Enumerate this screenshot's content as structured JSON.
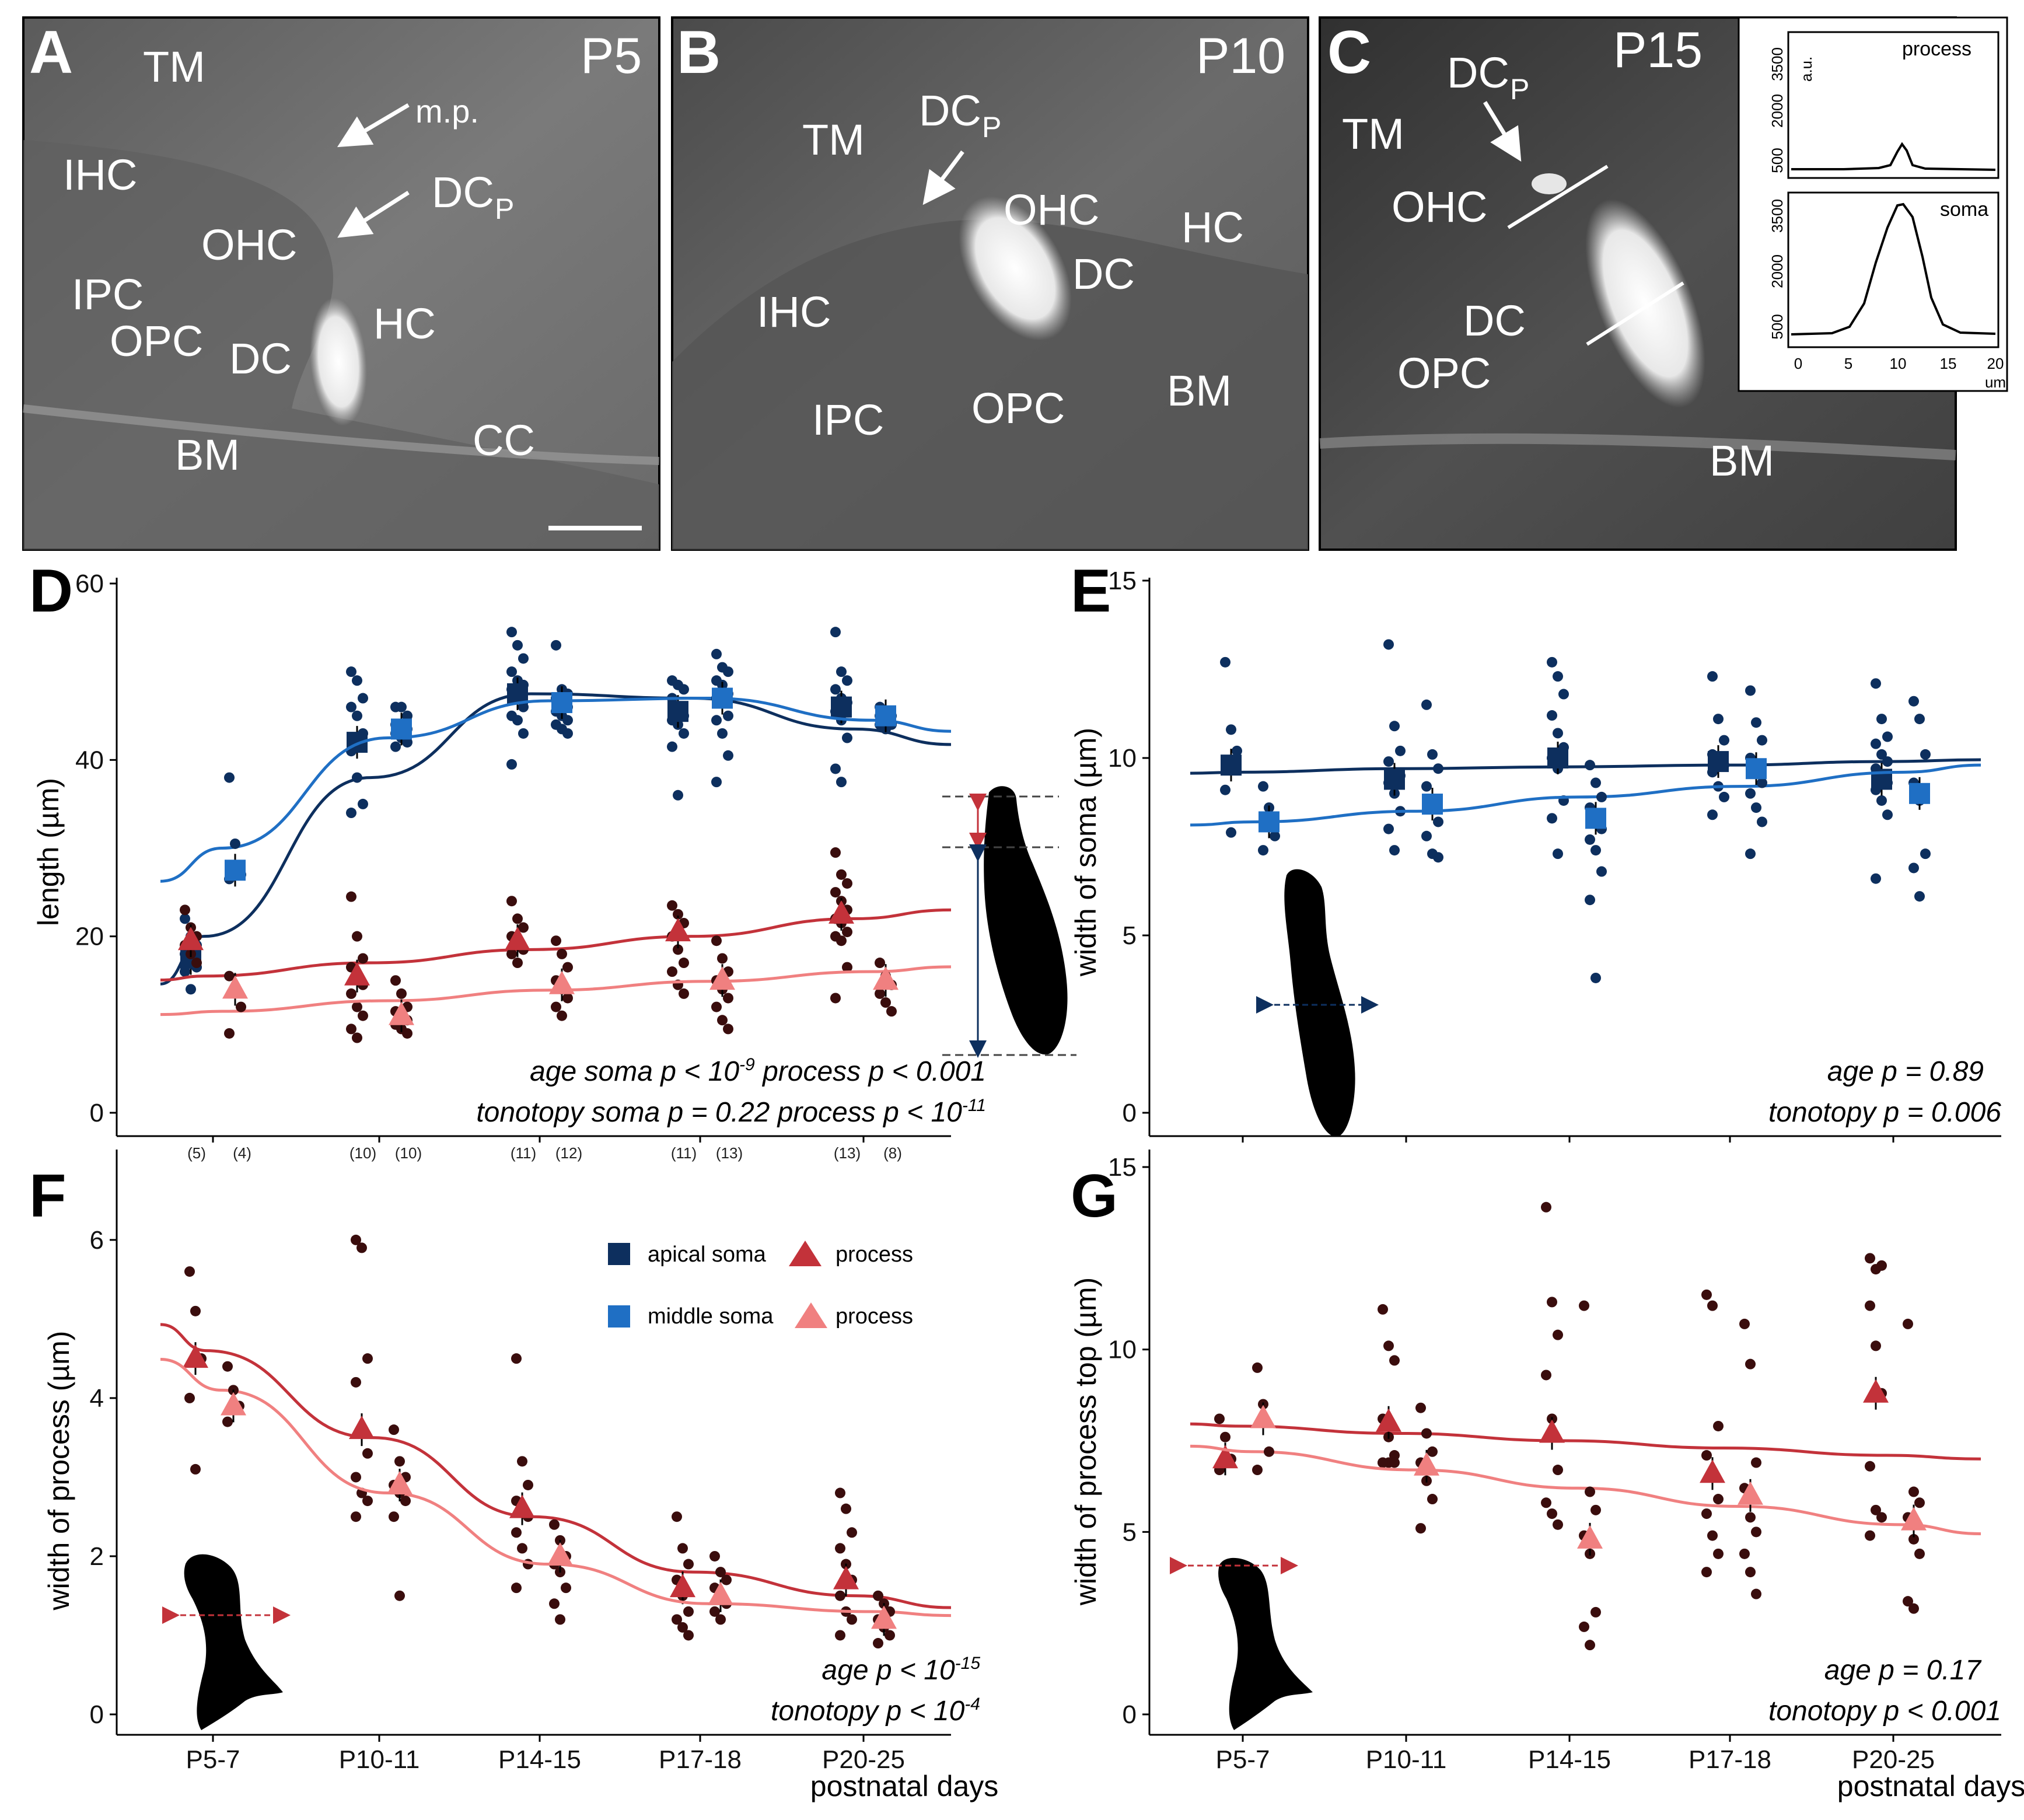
{
  "micrographs": [
    {
      "letter": "A",
      "stage": "P5",
      "labels": [
        "TM",
        "m.p.",
        "IHC",
        "DC",
        "P",
        "OHC",
        "IPC",
        "OPC",
        "DC",
        "HC",
        "BM",
        "CC"
      ]
    },
    {
      "letter": "B",
      "stage": "P10",
      "labels": [
        "TM",
        "DC",
        "P",
        "OHC",
        "HC",
        "DC",
        "IHC",
        "IPC",
        "OPC",
        "BM"
      ]
    },
    {
      "letter": "C",
      "stage": "P15",
      "labels": [
        "DC",
        "P",
        "TM",
        "OHC",
        "DC",
        "OPC",
        "BM"
      ]
    }
  ],
  "inset": {
    "top_label": "process",
    "bottom_label": "soma",
    "y_unit": "a.u.",
    "x_unit": "um",
    "top_yticks": [
      "3500",
      "2000",
      "500"
    ],
    "bottom_yticks": [
      "3500",
      "2000",
      "500"
    ],
    "xticks": [
      "0",
      "5",
      "10",
      "15",
      "20"
    ]
  },
  "legend": {
    "apical_soma": "apical soma",
    "middle_soma": "middle soma",
    "process_apical": "process",
    "process_middle": "process"
  },
  "colors": {
    "apical_soma": "#0d2f5e",
    "middle_soma": "#1f6fc4",
    "apical_process": "#c3323a",
    "middle_process": "#f08080",
    "points": "#3a0d0d"
  },
  "panels": {
    "D": {
      "letter": "D",
      "ylabel": "length (µm)",
      "yticks": [
        "0",
        "20",
        "40",
        "60"
      ],
      "counts": [
        "(5)",
        "(4)",
        "(10)",
        "(10)",
        "(11)",
        "(12)",
        "(11)",
        "(13)",
        "(13)",
        "(8)"
      ],
      "ann1_prefix": "age soma p < 10",
      "ann1_exp": "-9",
      "ann1_suffix": " process p < 0.001",
      "ann2_prefix": "tonotopy soma p = 0.22 process p < 10",
      "ann2_exp": "-11"
    },
    "E": {
      "letter": "E",
      "ylabel": "width of soma (µm)",
      "yticks": [
        "0",
        "5",
        "10",
        "15"
      ],
      "ann1": "age p = 0.89",
      "ann2": "tonotopy p = 0.006"
    },
    "F": {
      "letter": "F",
      "ylabel": "width of process (µm)",
      "yticks": [
        "0",
        "2",
        "4",
        "6"
      ],
      "xticks": [
        "P5-7",
        "P10-11",
        "P14-15",
        "P17-18",
        "P20-25"
      ],
      "xlabel": "postnatal days",
      "ann1_prefix": "age p < 10",
      "ann1_exp": "-15",
      "ann2_prefix": "tonotopy p < 10",
      "ann2_exp": "-4"
    },
    "G": {
      "letter": "G",
      "ylabel": "width of process top (µm)",
      "yticks": [
        "0",
        "5",
        "10",
        "15"
      ],
      "xticks": [
        "P5-7",
        "P10-11",
        "P14-15",
        "P17-18",
        "P20-25"
      ],
      "xlabel": "postnatal days",
      "ann1": "age p = 0.17",
      "ann2": "tonotopy p < 0.001"
    }
  },
  "chart_data": [
    {
      "panel": "D",
      "type": "scatter",
      "ylabel": "length (µm)",
      "ylim": [
        0,
        60
      ],
      "categories": [
        "P5-7",
        "P10-11",
        "P14-15",
        "P17-18",
        "P20-25"
      ],
      "series": [
        {
          "name": "apical soma",
          "means": [
            17.5,
            42,
            47.5,
            45.5,
            46
          ],
          "points": [
            [
              22,
              20,
              19,
              18,
              17,
              16.5,
              16,
              14
            ],
            [
              50,
              49,
              47,
              46,
              45,
              43,
              41,
              38,
              35,
              34
            ],
            [
              54.5,
              53,
              51.5,
              50,
              49,
              48.5,
              48,
              47,
              46,
              45,
              44.5,
              43,
              39.5
            ],
            [
              49,
              48.5,
              48,
              47,
              46,
              45,
              44.5,
              44,
              43,
              41.5,
              36
            ],
            [
              54.5,
              50,
              49,
              48,
              47,
              46.5,
              45.5,
              44.5,
              42.5,
              39,
              37.5
            ]
          ],
          "fit": [
            20,
            38,
            47.5,
            47,
            43.5
          ]
        },
        {
          "name": "middle soma",
          "means": [
            27.5,
            43.5,
            46.5,
            47,
            45
          ],
          "points": [
            [
              38,
              30.5,
              27,
              26.5
            ],
            [
              46,
              46,
              45,
              44,
              44,
              43.5,
              43,
              42.5,
              42,
              41.5
            ],
            [
              53,
              48,
              47.5,
              47,
              46.5,
              46,
              45.5,
              45,
              44.5,
              44,
              43.5,
              43
            ],
            [
              52,
              50.5,
              50,
              49,
              48.5,
              47.5,
              47,
              46.5,
              45,
              44.5,
              43,
              40.5,
              37.5
            ],
            [
              46,
              45.5,
              45,
              45,
              44.5,
              44,
              44,
              43.5
            ]
          ],
          "fit": [
            30,
            42.5,
            46.7,
            47,
            44.5
          ]
        },
        {
          "name": "process (apical)",
          "means": [
            19.5,
            15.5,
            19.5,
            20.5,
            22.5
          ],
          "points": [
            [
              23,
              21,
              20,
              19,
              18,
              17
            ],
            [
              24.5,
              20,
              17.5,
              16.5,
              15.5,
              14.5,
              13.5,
              12,
              11,
              9.5,
              8.5
            ],
            [
              24,
              22,
              21,
              20,
              19.5,
              18.5,
              18,
              17
            ],
            [
              23.5,
              22.5,
              21.5,
              20,
              18.5,
              17,
              16,
              14.5,
              13.5
            ],
            [
              29.5,
              27,
              26,
              25,
              24,
              23,
              22,
              21.5,
              20.5,
              20,
              19.5,
              16.5,
              13
            ]
          ],
          "fit": [
            15.5,
            17,
            18.5,
            20,
            22
          ]
        },
        {
          "name": "process (middle)",
          "means": [
            14,
            11,
            14.5,
            15,
            15
          ],
          "points": [
            [
              15.5,
              14,
              12,
              9
            ],
            [
              15,
              13.5,
              12,
              11.5,
              11,
              10.5,
              10,
              9.5,
              9
            ],
            [
              19.5,
              18,
              16.5,
              15,
              14,
              13,
              12,
              11
            ],
            [
              19.5,
              17.5,
              16,
              15,
              14,
              13,
              12,
              10.5,
              9.5
            ],
            [
              17,
              15.5,
              14.5,
              13.5,
              12.5,
              11.5
            ]
          ],
          "fit": [
            11.5,
            12.7,
            13.9,
            14.9,
            16
          ]
        }
      ]
    },
    {
      "panel": "E",
      "type": "scatter",
      "ylabel": "width of soma (µm)",
      "ylim": [
        0,
        15
      ],
      "categories": [
        "P5-7",
        "P10-11",
        "P14-15",
        "P17-18",
        "P20-25"
      ],
      "series": [
        {
          "name": "apical soma",
          "means": [
            9.8,
            9.4,
            10,
            9.9,
            9.4
          ],
          "points": [
            [
              12.7,
              10.8,
              10.2,
              9.1,
              7.9
            ],
            [
              13.2,
              10.9,
              10.2,
              9.9,
              9.6,
              9.5,
              9.3,
              9,
              8.5,
              8,
              7.4
            ],
            [
              12.7,
              12.3,
              11.8,
              11.2,
              10.7,
              10.3,
              10,
              9.7,
              8.8,
              8.3,
              7.3
            ],
            [
              12.3,
              11.1,
              10.5,
              10.1,
              10,
              9.8,
              9.6,
              9.2,
              8.9,
              8.4
            ],
            [
              12.1,
              11.1,
              10.6,
              10.4,
              10.1,
              9.9,
              9.7,
              9.5,
              9.3,
              9.1,
              8.8,
              8.4,
              6.6
            ]
          ],
          "fit": [
            9.6,
            9.7,
            9.75,
            9.8,
            9.9
          ]
        },
        {
          "name": "middle soma",
          "means": [
            8.2,
            8.7,
            8.3,
            9.7,
            9
          ],
          "points": [
            [
              9.2,
              8.6,
              7.8,
              7.4
            ],
            [
              11.5,
              10.1,
              9.7,
              9.2,
              8.7,
              8.2,
              7.8,
              7.3,
              7.2
            ],
            [
              9.8,
              9.3,
              8.9,
              8.6,
              8.3,
              8,
              7.7,
              7.4,
              6.8,
              6,
              3.8
            ],
            [
              11.9,
              11,
              10.5,
              10,
              9.7,
              9.3,
              9,
              8.6,
              8.2,
              7.3
            ],
            [
              11.6,
              11.1,
              10.1,
              9.3,
              8.8,
              7.3,
              6.9,
              6.1
            ]
          ],
          "fit": [
            8.2,
            8.5,
            8.9,
            9.2,
            9.6
          ]
        }
      ]
    },
    {
      "panel": "F",
      "type": "scatter",
      "ylabel": "width of process (µm)",
      "xlabel": "postnatal days",
      "ylim": [
        0,
        7
      ],
      "categories": [
        "P5-7",
        "P10-11",
        "P14-15",
        "P17-18",
        "P20-25"
      ],
      "series": [
        {
          "name": "process (apical)",
          "means": [
            4.5,
            3.6,
            2.6,
            1.6,
            1.7
          ],
          "points": [
            [
              5.6,
              5.1,
              4.5,
              4,
              3.1
            ],
            [
              6,
              5.9,
              4.5,
              4.2,
              3.6,
              3.3,
              3,
              2.8,
              2.7,
              2.5
            ],
            [
              4.5,
              3.2,
              2.9,
              2.7,
              2.6,
              2.5,
              2.3,
              2.1,
              1.9,
              1.6
            ],
            [
              2.5,
              2.1,
              1.9,
              1.7,
              1.5,
              1.3,
              1.2,
              1.1,
              1
            ],
            [
              2.8,
              2.6,
              2.3,
              2.1,
              1.9,
              1.7,
              1.5,
              1.3,
              1.2,
              1
            ]
          ],
          "fit": [
            4.6,
            3.5,
            2.5,
            1.8,
            1.5
          ]
        },
        {
          "name": "process (middle)",
          "means": [
            3.9,
            2.9,
            2,
            1.5,
            1.2
          ],
          "points": [
            [
              4.4,
              4.1,
              3.9,
              3.7
            ],
            [
              3.6,
              3.2,
              3,
              2.9,
              2.8,
              2.7,
              2.5,
              1.5
            ],
            [
              2.4,
              2.2,
              2,
              1.9,
              1.8,
              1.6,
              1.4,
              1.2
            ],
            [
              2,
              1.8,
              1.7,
              1.6,
              1.5,
              1.4,
              1.3,
              1.2
            ],
            [
              1.5,
              1.4,
              1.3,
              1.2,
              1.1,
              1,
              0.9
            ]
          ],
          "fit": [
            4.1,
            2.8,
            1.9,
            1.4,
            1.3
          ]
        }
      ]
    },
    {
      "panel": "G",
      "type": "scatter",
      "ylabel": "width of process top (µm)",
      "xlabel": "postnatal days",
      "ylim": [
        0,
        15
      ],
      "categories": [
        "P5-7",
        "P10-11",
        "P14-15",
        "P17-18",
        "P20-25"
      ],
      "series": [
        {
          "name": "process (apical)",
          "means": [
            7,
            8,
            7.7,
            6.6,
            8.8
          ],
          "points": [
            [
              8.1,
              7.6,
              7,
              6.7
            ],
            [
              11.1,
              10.1,
              9.7,
              8.1,
              7.6,
              7.1,
              6.9,
              6.9,
              6.9,
              6.9
            ],
            [
              13.9,
              11.3,
              10.4,
              9.3,
              8.1,
              6.7,
              5.8,
              5.5,
              5.2
            ],
            [
              11.5,
              11.2,
              7.9,
              7.1,
              6.6,
              5.9,
              5.5,
              4.9,
              4.4,
              3.9
            ],
            [
              12.5,
              12.2,
              12.3,
              11.2,
              10.1,
              8.8,
              6.8,
              5.6,
              5.4,
              4.9
            ]
          ],
          "fit": [
            7.9,
            7.7,
            7.5,
            7.3,
            7.1
          ]
        },
        {
          "name": "process (middle)",
          "means": [
            8.1,
            6.8,
            4.8,
            6,
            5.3
          ],
          "points": [
            [
              9.5,
              8.5,
              7.2,
              6.7
            ],
            [
              8.4,
              7.7,
              7.2,
              6.9,
              6.4,
              5.9,
              5.1
            ],
            [
              11.2,
              6.1,
              5.6,
              4.9,
              4.4,
              2.8,
              2.4,
              1.9
            ],
            [
              10.7,
              9.6,
              6.9,
              6.2,
              5.4,
              5,
              4.4,
              3.9,
              3.3
            ],
            [
              10.7,
              6.1,
              5.8,
              5.4,
              4.8,
              4.4,
              3.1,
              2.9
            ]
          ],
          "fit": [
            7.2,
            6.7,
            6.2,
            5.7,
            5.2
          ]
        }
      ]
    }
  ]
}
